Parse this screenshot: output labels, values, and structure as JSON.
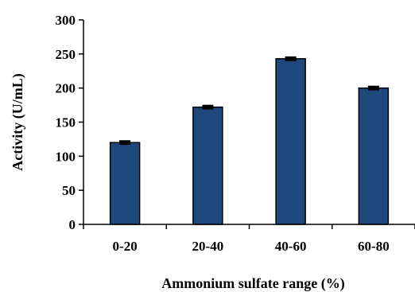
{
  "chart_data": {
    "type": "bar",
    "title": "",
    "xlabel": "Ammonium sulfate range (%)",
    "ylabel": "Activity (U/mL)",
    "categories": [
      "0-20",
      "20-40",
      "40-60",
      "60-80"
    ],
    "values": [
      120,
      172,
      243,
      200
    ],
    "errors": [
      2,
      2,
      2,
      2
    ],
    "ylim": [
      0,
      300
    ],
    "yticks": [
      "0",
      "50",
      "100",
      "150",
      "200",
      "250",
      "300"
    ],
    "bar_color": "#1f487c",
    "bar_edge_color": "#000000",
    "grid": false,
    "legend": "none"
  }
}
